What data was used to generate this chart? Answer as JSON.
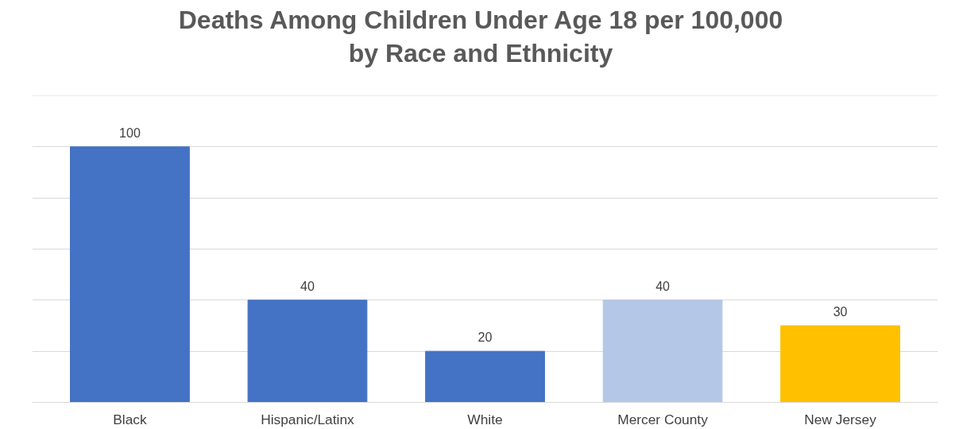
{
  "chart_data": {
    "type": "bar",
    "title": "Deaths Among Children Under Age 18 per 100,000\nby Race and Ethnicity",
    "categories": [
      "Black",
      "Hispanic/Latinx",
      "White",
      "Mercer County",
      "New Jersey"
    ],
    "values": [
      100,
      40,
      20,
      40,
      30
    ],
    "colors": [
      "#4472c4",
      "#4472c4",
      "#4472c4",
      "#b4c7e7",
      "#ffc000"
    ],
    "ylim": [
      0,
      120
    ],
    "yticks": [
      {
        "value": 0,
        "label": null
      },
      {
        "value": 20,
        "label": null
      },
      {
        "value": 40,
        "label": null
      },
      {
        "value": 60,
        "label": null
      },
      {
        "value": 80,
        "label": null
      },
      {
        "value": 100,
        "label": null
      },
      {
        "value": 120,
        "label": null
      }
    ],
    "grid": "y",
    "tick_labels": "x",
    "data_labels": true
  }
}
